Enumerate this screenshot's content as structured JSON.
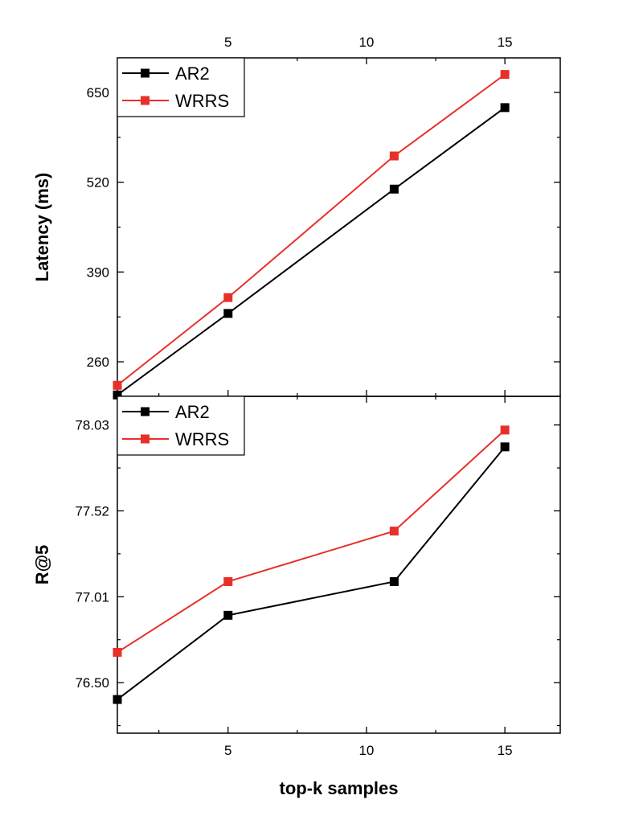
{
  "chart_data": [
    {
      "type": "line",
      "panel": "top",
      "title": "",
      "xlabel": "",
      "ylabel": "Latency (ms)",
      "x": [
        1,
        5,
        11,
        15
      ],
      "xlim": [
        1,
        17
      ],
      "ylim": [
        210,
        700
      ],
      "xticks": [
        5,
        10,
        15
      ],
      "yticks": [
        260,
        390,
        520,
        650
      ],
      "ytick_labels": [
        "260",
        "390",
        "520",
        "650"
      ],
      "xtick_labels": [
        "5",
        "10",
        "15"
      ],
      "xaxis_position": "top",
      "legend": "top-left",
      "grid": false,
      "series": [
        {
          "name": "AR2",
          "color": "#000000",
          "values": [
            212,
            330,
            510,
            628
          ]
        },
        {
          "name": "WRRS",
          "color": "#e8302a",
          "values": [
            226,
            353,
            558,
            676
          ]
        }
      ]
    },
    {
      "type": "line",
      "panel": "bottom",
      "title": "",
      "xlabel": "top-k samples",
      "ylabel": "R@5",
      "x": [
        1,
        5,
        11,
        15
      ],
      "xlim": [
        1,
        17
      ],
      "ylim": [
        76.2,
        78.2
      ],
      "xticks": [
        5,
        10,
        15
      ],
      "yticks": [
        76.5,
        77.01,
        77.52,
        78.03
      ],
      "ytick_labels": [
        "76.50",
        "77.01",
        "77.52",
        "78.03"
      ],
      "xtick_labels": [
        "5",
        "10",
        "15"
      ],
      "xaxis_position": "bottom",
      "legend": "top-left",
      "grid": false,
      "series": [
        {
          "name": "AR2",
          "color": "#000000",
          "values": [
            76.4,
            76.9,
            77.1,
            77.9
          ]
        },
        {
          "name": "WRRS",
          "color": "#e8302a",
          "values": [
            76.68,
            77.1,
            77.4,
            78.0
          ]
        }
      ]
    }
  ]
}
